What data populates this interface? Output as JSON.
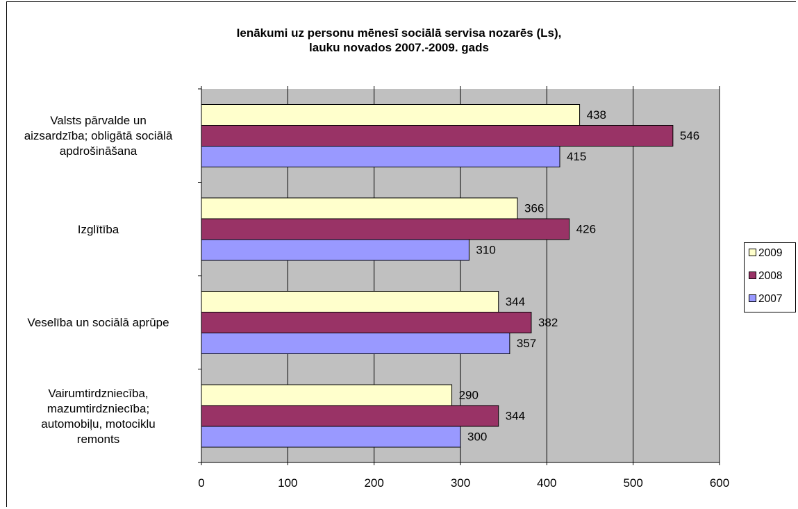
{
  "chart_data": {
    "type": "bar",
    "orientation": "horizontal",
    "title": [
      "Ienākumi uz personu mēnesī sociālā servisa nozarēs (Ls),",
      "lauku novados 2007.-2009. gads"
    ],
    "categories": [
      [
        "Valsts pārvalde un",
        "aizsardzība; obligātā sociālā",
        "apdrošināšana"
      ],
      [
        "Izglītība"
      ],
      [
        "Veselība un sociālā aprūpe"
      ],
      [
        "Vairumtirdzniecība,",
        "mazumtirdzniecība;",
        "automobiļu, motociklu",
        "remonts"
      ]
    ],
    "series": [
      {
        "name": "2009",
        "color": "#ffffcc",
        "values": [
          438,
          366,
          344,
          290
        ]
      },
      {
        "name": "2008",
        "color": "#993366",
        "values": [
          546,
          426,
          382,
          344
        ]
      },
      {
        "name": "2007",
        "color": "#9999ff",
        "values": [
          415,
          310,
          357,
          300
        ]
      }
    ],
    "xlim": [
      0,
      600
    ],
    "xticks": [
      "0",
      "100",
      "200",
      "300",
      "400",
      "500",
      "600"
    ],
    "plot_background": "#c0c0c0",
    "grid": true,
    "legend_position": "right",
    "data_labels": true
  }
}
